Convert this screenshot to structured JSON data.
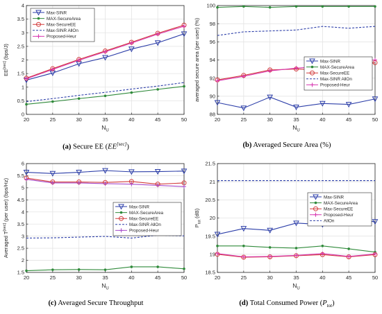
{
  "chart_data": [
    {
      "type": "line",
      "caption": {
        "label": "(a)",
        "text": "Secure EE (",
        "math": "EE",
        "sup": "[sec]",
        "close": ")"
      },
      "xlabel": {
        "main": "N",
        "sub": "U"
      },
      "ylabel": "EE$^{[sec]}$ (bps/J)",
      "ylabel_main": "EE",
      "ylabel_sup": "[sec]",
      "ylabel_rest": " (bps/J)",
      "x": [
        20,
        25,
        30,
        35,
        40,
        45,
        50
      ],
      "xlim": [
        20,
        50
      ],
      "ylim": [
        0,
        4
      ],
      "xticks": [
        "20",
        "25",
        "30",
        "35",
        "40",
        "45",
        "50"
      ],
      "yticks": [
        "0",
        "0.5",
        "1",
        "1.5",
        "2",
        "2.5",
        "3",
        "3.5",
        "4"
      ],
      "legend_position": "top-left",
      "series": [
        {
          "name": "Max-SINR",
          "color": "#2b3da8",
          "marker": "triangle-down",
          "dash": "solid",
          "values": [
            1.26,
            1.52,
            1.86,
            2.09,
            2.4,
            2.63,
            2.96
          ]
        },
        {
          "name": "MAX-SecureArea",
          "color": "#2f8a3a",
          "marker": "dot",
          "dash": "solid",
          "values": [
            0.37,
            0.47,
            0.58,
            0.68,
            0.8,
            0.92,
            1.03
          ]
        },
        {
          "name": "Max-SecureEE",
          "color": "#d23a3a",
          "marker": "circle",
          "dash": "solid",
          "values": [
            1.33,
            1.68,
            2.02,
            2.33,
            2.65,
            2.98,
            3.28
          ]
        },
        {
          "name": "Max-SINR AllOn",
          "color": "#2b3da8",
          "marker": "none",
          "dash": "dashed",
          "values": [
            0.47,
            0.58,
            0.7,
            0.81,
            0.93,
            1.04,
            1.17
          ]
        },
        {
          "name": "Proposed-Heur",
          "color": "#d836b0",
          "marker": "plus",
          "dash": "solid",
          "values": [
            1.31,
            1.65,
            1.99,
            2.3,
            2.62,
            2.95,
            3.24
          ]
        }
      ]
    },
    {
      "type": "line",
      "caption": {
        "label": "(b)",
        "text": "Averaged Secure Area (%)"
      },
      "xlabel": {
        "main": "N",
        "sub": "U"
      },
      "ylabel": "averaged secure area (per user) (%)",
      "x": [
        20,
        25,
        30,
        35,
        40,
        45,
        50
      ],
      "xlim": [
        20,
        50
      ],
      "ylim": [
        88,
        100
      ],
      "xticks": [
        "20",
        "25",
        "30",
        "35",
        "40",
        "45",
        "50"
      ],
      "yticks": [
        "88",
        "90",
        "92",
        "94",
        "96",
        "98",
        "100"
      ],
      "legend_position": "right",
      "series": [
        {
          "name": "Max-SINR",
          "color": "#2b3da8",
          "marker": "triangle-down",
          "dash": "solid",
          "values": [
            89.3,
            88.7,
            89.9,
            88.8,
            89.2,
            89.1,
            89.7
          ]
        },
        {
          "name": "MAX-SecureArea",
          "color": "#2f8a3a",
          "marker": "dot",
          "dash": "solid",
          "values": [
            99.8,
            99.9,
            99.8,
            99.9,
            99.9,
            99.9,
            99.9
          ]
        },
        {
          "name": "Max-SecureEE",
          "color": "#d23a3a",
          "marker": "circle",
          "dash": "solid",
          "values": [
            91.8,
            92.3,
            92.9,
            93.0,
            92.9,
            93.2,
            93.7
          ]
        },
        {
          "name": "Max-SINR AllOn",
          "color": "#2b3da8",
          "marker": "none",
          "dash": "dashed",
          "values": [
            96.7,
            97.1,
            97.2,
            97.3,
            97.7,
            97.5,
            97.7
          ]
        },
        {
          "name": "Proposed-Heur",
          "color": "#d836b0",
          "marker": "plus",
          "dash": "solid",
          "values": [
            91.7,
            92.2,
            92.8,
            93.1,
            93.3,
            93.8,
            94.0
          ]
        }
      ]
    },
    {
      "type": "line",
      "caption": {
        "label": "(c)",
        "text": "Averaged Secure Throughput"
      },
      "xlabel": {
        "main": "N",
        "sub": "U"
      },
      "ylabel": "Averaged T$^{[sec]}$ (per user) (bps/Hz)",
      "ylabel_main": "Averaged T",
      "ylabel_sup": "[sec]",
      "ylabel_rest": " (per user) (bps/Hz)",
      "x": [
        20,
        25,
        30,
        35,
        40,
        45,
        50
      ],
      "xlim": [
        20,
        50
      ],
      "ylim": [
        1.5,
        6
      ],
      "xticks": [
        "20",
        "25",
        "30",
        "35",
        "40",
        "45",
        "50"
      ],
      "yticks": [
        "1.5",
        "2",
        "2.5",
        "3",
        "3.5",
        "4",
        "4.5",
        "5",
        "5.5",
        "6"
      ],
      "legend_position": "right",
      "series": [
        {
          "name": "Max-SINR",
          "color": "#2b3da8",
          "marker": "triangle-down",
          "dash": "solid",
          "values": [
            5.64,
            5.59,
            5.64,
            5.71,
            5.66,
            5.67,
            5.69
          ]
        },
        {
          "name": "MAX-SecureArea",
          "color": "#2f8a3a",
          "marker": "dot",
          "dash": "solid",
          "values": [
            1.57,
            1.61,
            1.62,
            1.61,
            1.73,
            1.73,
            1.65
          ]
        },
        {
          "name": "Max-SecureEE",
          "color": "#d23a3a",
          "marker": "circle",
          "dash": "solid",
          "values": [
            5.4,
            5.24,
            5.24,
            5.22,
            5.26,
            5.15,
            5.2
          ]
        },
        {
          "name": "Max-SINR AllOn",
          "color": "#2b3da8",
          "marker": "none",
          "dash": "dashed",
          "values": [
            2.92,
            2.93,
            2.96,
            2.99,
            2.92,
            3.04,
            3.01
          ]
        },
        {
          "name": "Proposed-Heur",
          "color": "#a64ac9",
          "marker": "plus",
          "dash": "solid",
          "values": [
            5.35,
            5.2,
            5.2,
            5.17,
            5.15,
            5.1,
            5.05
          ]
        }
      ]
    },
    {
      "type": "line",
      "caption": {
        "label": "(d)",
        "text": "Total Consumed Power (",
        "math": "P",
        "sub": "tot",
        "close": ")"
      },
      "xlabel": {
        "main": "N",
        "sub": "U"
      },
      "ylabel": "P$_{tot}$ (dB)",
      "ylabel_main": "P",
      "ylabel_sub": "tot",
      "ylabel_rest": " (dB)",
      "x": [
        20,
        25,
        30,
        35,
        40,
        45,
        50
      ],
      "xlim": [
        20,
        50
      ],
      "ylim": [
        18.5,
        21.5
      ],
      "xticks": [
        "20",
        "25",
        "30",
        "35",
        "40",
        "45",
        "50"
      ],
      "yticks": [
        "18.5",
        "19",
        "19.5",
        "20",
        "20.5",
        "21",
        "21.5"
      ],
      "legend_position": "top-right",
      "series": [
        {
          "name": "Max-SINR",
          "color": "#2b3da8",
          "marker": "triangle-down",
          "dash": "solid",
          "values": [
            19.55,
            19.71,
            19.66,
            19.86,
            19.82,
            19.92,
            19.9
          ]
        },
        {
          "name": "MAX-SecureArea",
          "color": "#2f8a3a",
          "marker": "dot",
          "dash": "solid",
          "values": [
            19.23,
            19.23,
            19.19,
            19.17,
            19.23,
            19.15,
            19.06
          ]
        },
        {
          "name": "Max-SecureEE",
          "color": "#d23a3a",
          "marker": "circle",
          "dash": "solid",
          "values": [
            19.0,
            18.92,
            18.93,
            18.96,
            18.99,
            18.93,
            18.99
          ]
        },
        {
          "name": "Proposed-Heur",
          "color": "#d836b0",
          "marker": "plus",
          "dash": "solid",
          "values": [
            19.02,
            18.93,
            18.94,
            18.97,
            19.02,
            18.94,
            19.01
          ]
        },
        {
          "name": "AllOn",
          "color": "#2b3da8",
          "marker": "none",
          "dash": "dashed",
          "values": [
            21.03,
            21.03,
            21.03,
            21.03,
            21.03,
            21.03,
            21.03
          ]
        }
      ]
    }
  ]
}
